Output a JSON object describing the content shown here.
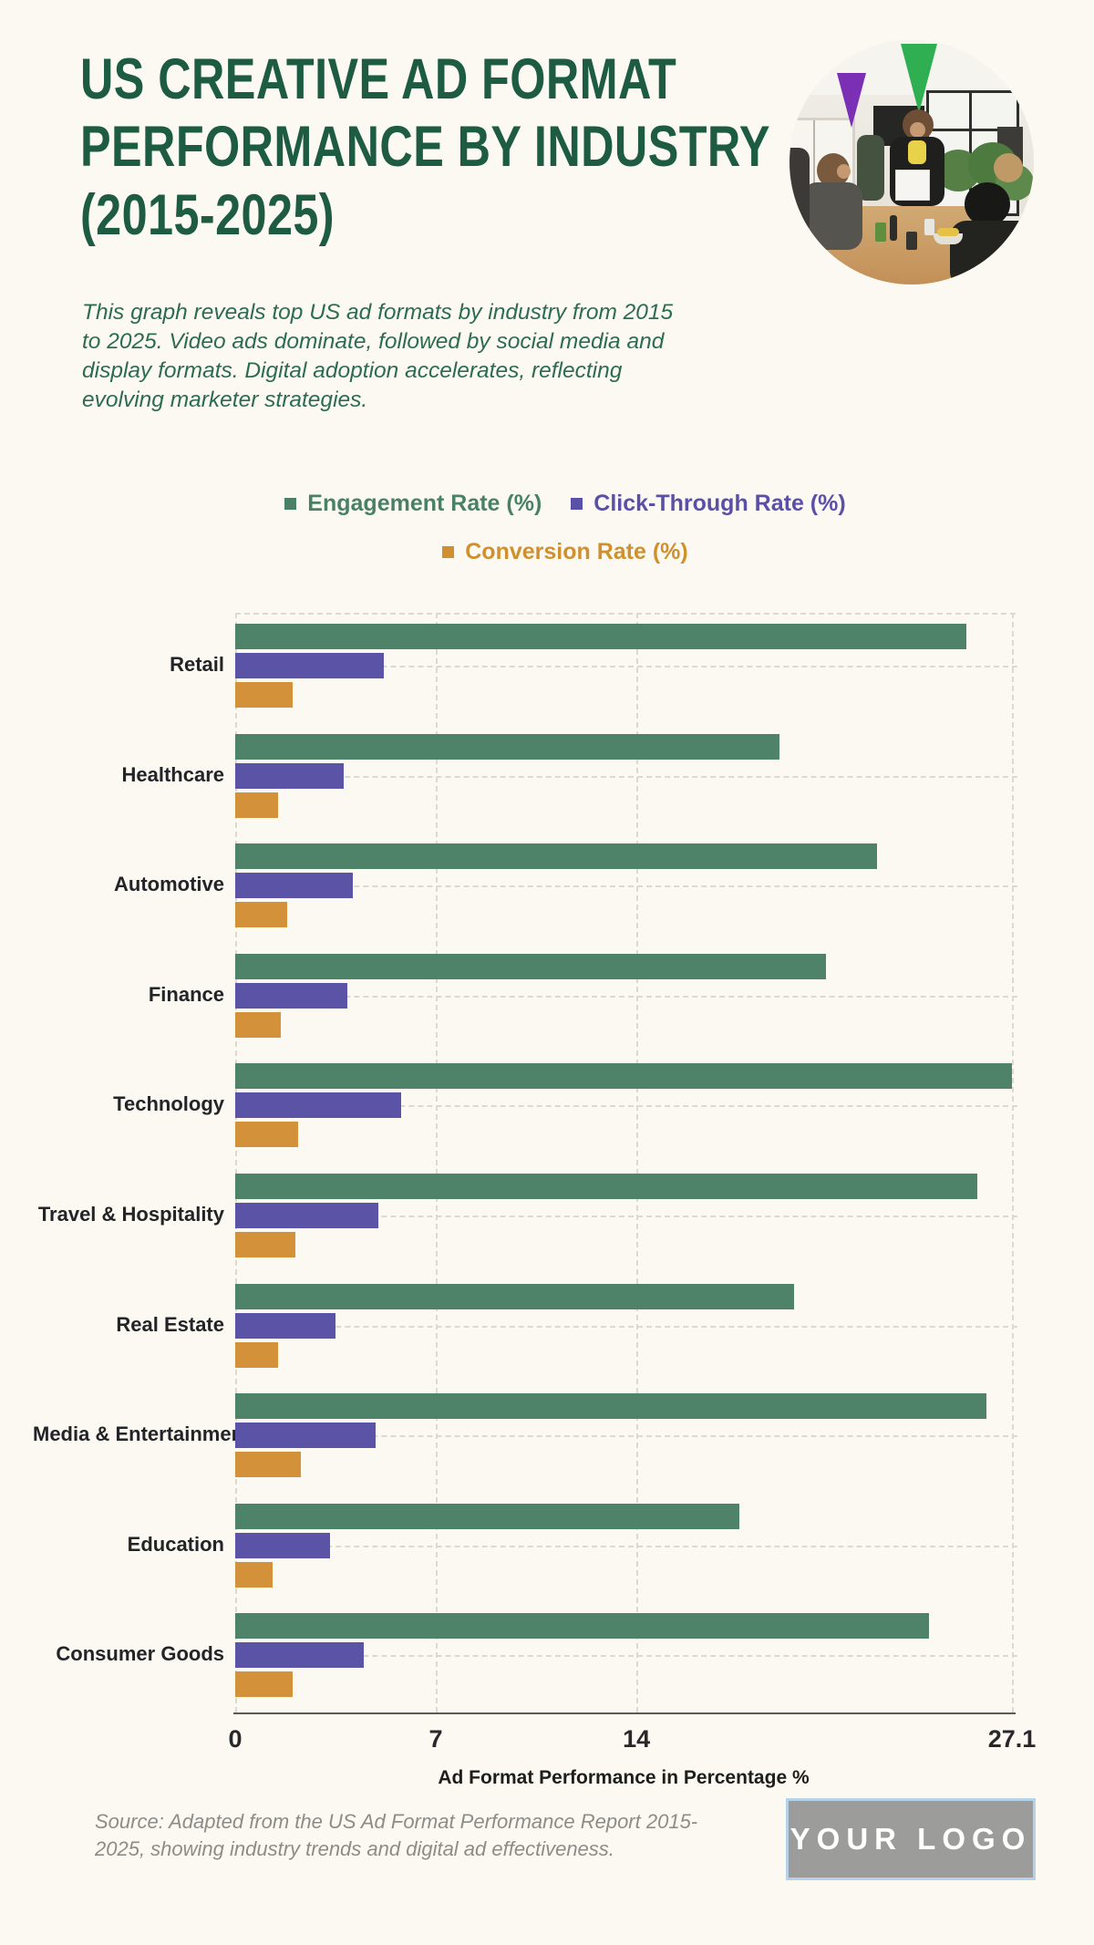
{
  "page": {
    "title_lines": [
      "US CREATIVE AD FORMAT",
      "PERFORMANCE BY INDUSTRY",
      "(2015-2025)"
    ],
    "subtitle": "This graph reveals top US ad formats by industry from 2015 to 2025. Video ads dominate, followed by social media and display formats. Digital adoption accelerates, reflecting evolving marketer strategies.",
    "source": "Source: Adapted from the US Ad Format Performance Report 2015-2025, showing industry trends and digital ad effectiveness.",
    "logo_text": "YOUR LOGO",
    "hero_image": "office-team-meeting-photo"
  },
  "colors": {
    "background": "#fbf9f2",
    "title": "#1d5c43",
    "subtitle": "#2d6b53",
    "engagement": "#4e8269",
    "click_through": "#5b53a6",
    "conversion": "#d3913a",
    "gridline": "#dcdad0",
    "axis_line": "#5a5a57",
    "row_label": "#222428",
    "source_text": "#8d8c89",
    "logo_bg": "#9c9c9a",
    "logo_border": "#b5d2e8"
  },
  "legend": [
    {
      "label": "Engagement Rate (%)",
      "color": "#4a8166"
    },
    {
      "label": "Click-Through Rate (%)",
      "color": "#5b50a8"
    },
    {
      "label": "Conversion Rate (%)",
      "color": "#d0902f"
    }
  ],
  "chart_data": {
    "type": "bar",
    "orientation": "horizontal",
    "title": "US Creative Ad Format Performance by Industry (2015-2025)",
    "categories": [
      "Retail",
      "Healthcare",
      "Automotive",
      "Finance",
      "Technology",
      "Travel & Hospitality",
      "Real Estate",
      "Media & Entertainment",
      "Education",
      "Consumer Goods"
    ],
    "series": [
      {
        "name": "Engagement Rate (%)",
        "color": "#4e8269",
        "values": [
          25.5,
          19.0,
          22.4,
          20.6,
          27.1,
          25.9,
          19.5,
          26.2,
          17.6,
          24.2
        ]
      },
      {
        "name": "Click-Through Rate (%)",
        "color": "#5b53a6",
        "values": [
          5.2,
          3.8,
          4.1,
          3.9,
          5.8,
          5.0,
          3.5,
          4.9,
          3.3,
          4.5
        ]
      },
      {
        "name": "Conversion Rate (%)",
        "color": "#d3913a",
        "values": [
          2.0,
          1.5,
          1.8,
          1.6,
          2.2,
          2.1,
          1.5,
          2.3,
          1.3,
          2.0
        ]
      }
    ],
    "xlabel": "Ad Format Performance in Percentage %",
    "x_ticks": [
      0,
      7,
      14,
      27.1
    ],
    "xlim": [
      0,
      27.1
    ],
    "grid": true,
    "legend_position": "top"
  }
}
